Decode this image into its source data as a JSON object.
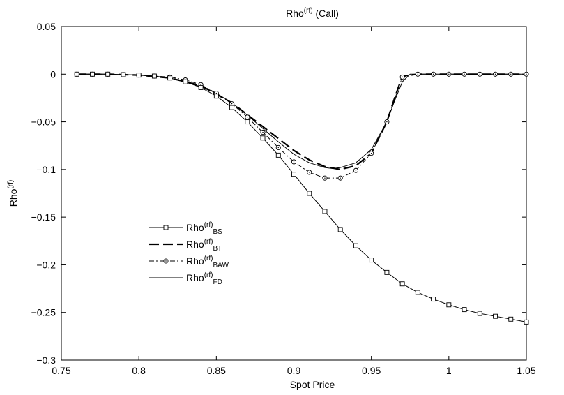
{
  "chart_data": {
    "type": "line",
    "title": {
      "main": "Rho",
      "sup": "(rf)",
      "suffix": " (Call)"
    },
    "xlabel": "Spot Price",
    "ylabel": {
      "main": "Rho",
      "sup": "(rf)"
    },
    "xlim": [
      0.75,
      1.05
    ],
    "ylim": [
      -0.3,
      0.05
    ],
    "xticks": [
      0.75,
      0.8,
      0.85,
      0.9,
      0.95,
      1,
      1.05
    ],
    "xtick_labels": [
      "0.75",
      "0.8",
      "0.85",
      "0.9",
      "0.95",
      "1",
      "1.05"
    ],
    "yticks": [
      -0.3,
      -0.25,
      -0.2,
      -0.15,
      -0.1,
      -0.05,
      0,
      0.05
    ],
    "ytick_labels": [
      "−0.3",
      "−0.25",
      "−0.2",
      "−0.15",
      "−0.1",
      "−0.05",
      "0",
      "0.05"
    ],
    "grid": false,
    "legend_position": "center-left",
    "series": [
      {
        "name": {
          "main": "Rho",
          "sup": "(rf)",
          "sub": "BS"
        },
        "style": "solid-square",
        "x": [
          0.76,
          0.77,
          0.78,
          0.79,
          0.8,
          0.81,
          0.82,
          0.83,
          0.84,
          0.85,
          0.86,
          0.87,
          0.88,
          0.89,
          0.9,
          0.91,
          0.92,
          0.93,
          0.94,
          0.95,
          0.96,
          0.97,
          0.98,
          0.99,
          1.0,
          1.01,
          1.02,
          1.03,
          1.04,
          1.05
        ],
        "y": [
          0.0,
          0.0,
          0.0,
          -0.0005,
          -0.001,
          -0.002,
          -0.004,
          -0.008,
          -0.014,
          -0.023,
          -0.035,
          -0.05,
          -0.067,
          -0.085,
          -0.105,
          -0.125,
          -0.144,
          -0.163,
          -0.18,
          -0.195,
          -0.208,
          -0.22,
          -0.229,
          -0.236,
          -0.242,
          -0.247,
          -0.251,
          -0.254,
          -0.257,
          -0.26
        ]
      },
      {
        "name": {
          "main": "Rho",
          "sup": "(rf)",
          "sub": "BT"
        },
        "style": "dashed-bold",
        "x": [
          0.76,
          0.78,
          0.8,
          0.82,
          0.84,
          0.86,
          0.88,
          0.9,
          0.91,
          0.92,
          0.93,
          0.94,
          0.95,
          0.96,
          0.965,
          0.97,
          0.98,
          1.0,
          1.02,
          1.05
        ],
        "y": [
          0.0,
          0.0,
          -0.001,
          -0.004,
          -0.012,
          -0.03,
          -0.055,
          -0.08,
          -0.09,
          -0.097,
          -0.1,
          -0.096,
          -0.083,
          -0.05,
          -0.025,
          -0.002,
          0.0,
          0.0,
          0.0,
          0.0
        ]
      },
      {
        "name": {
          "main": "Rho",
          "sup": "(rf)",
          "sub": "BAW"
        },
        "style": "dashdot-circle",
        "x": [
          0.76,
          0.77,
          0.78,
          0.79,
          0.8,
          0.81,
          0.82,
          0.83,
          0.84,
          0.85,
          0.86,
          0.87,
          0.88,
          0.89,
          0.9,
          0.91,
          0.92,
          0.93,
          0.94,
          0.95,
          0.96,
          0.97,
          0.98,
          0.99,
          1.0,
          1.01,
          1.02,
          1.03,
          1.04,
          1.05
        ],
        "y": [
          0.0,
          0.0,
          0.0,
          -0.0005,
          -0.001,
          -0.002,
          -0.003,
          -0.006,
          -0.011,
          -0.02,
          -0.031,
          -0.045,
          -0.061,
          -0.077,
          -0.092,
          -0.103,
          -0.109,
          -0.109,
          -0.101,
          -0.083,
          -0.05,
          -0.003,
          0.0,
          0.0,
          0.0,
          0.0,
          0.0,
          0.0,
          0.0,
          0.0
        ]
      },
      {
        "name": {
          "main": "Rho",
          "sup": "(rf)",
          "sub": "FD"
        },
        "style": "solid-thin",
        "x": [
          0.76,
          0.78,
          0.8,
          0.82,
          0.84,
          0.85,
          0.86,
          0.87,
          0.88,
          0.89,
          0.9,
          0.91,
          0.92,
          0.925,
          0.93,
          0.94,
          0.95,
          0.96,
          0.965,
          0.97,
          0.975,
          0.98,
          1.0,
          1.02,
          1.05
        ],
        "y": [
          0.0,
          0.0,
          -0.001,
          -0.004,
          -0.013,
          -0.02,
          -0.03,
          -0.043,
          -0.057,
          -0.071,
          -0.084,
          -0.093,
          -0.098,
          -0.099,
          -0.098,
          -0.093,
          -0.079,
          -0.05,
          -0.028,
          -0.008,
          0.0,
          0.0,
          0.0,
          0.0,
          0.0
        ]
      }
    ]
  }
}
